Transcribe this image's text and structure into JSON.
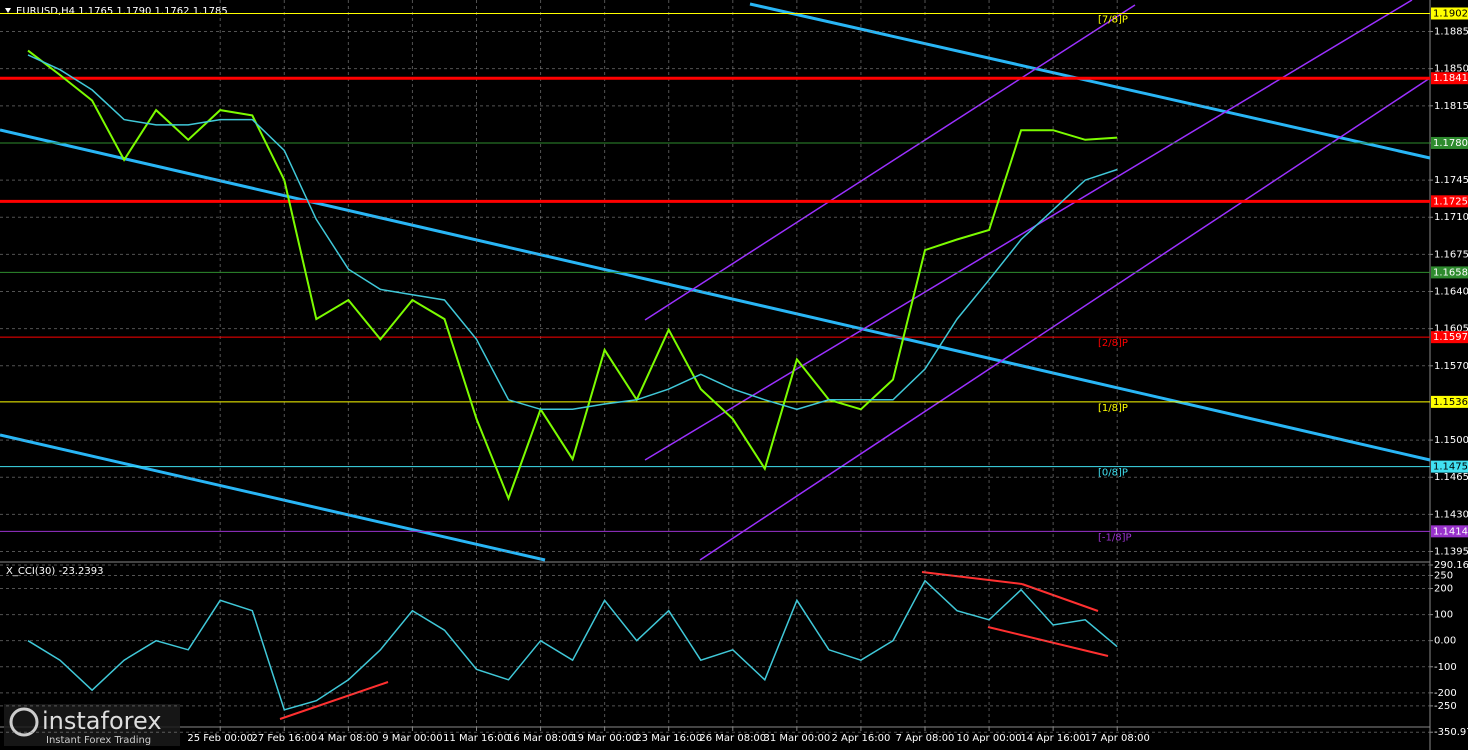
{
  "chart_data": [
    {
      "type": "line",
      "title": "EURUSD,H4  1.1765 1.1790 1.1762 1.1785",
      "categories": [
        null,
        null,
        null,
        null,
        null,
        null,
        "25 Feb 00:00",
        null,
        "27 Feb 16:00",
        null,
        "4 Mar 08:00",
        null,
        "9 Mar 00:00",
        null,
        "11 Mar 16:00",
        null,
        "16 Mar 08:00",
        null,
        "19 Mar 00:00",
        null,
        "23 Mar 16:00",
        null,
        "26 Mar 08:00",
        null,
        "31 Mar 00:00",
        null,
        "2 Apr 16:00",
        null,
        "7 Apr 08:00",
        null,
        "10 Apr 00:00",
        null,
        "14 Apr 16:00",
        null,
        "17 Apr 08:00"
      ],
      "series": [
        {
          "color": "#7cfc00",
          "values": [
            1.1867,
            1.1844,
            1.182,
            1.1764,
            1.1811,
            1.1783,
            1.1811,
            1.1806,
            1.1745,
            1.1614,
            1.1632,
            1.1595,
            1.1632,
            1.1614,
            1.152,
            1.1445,
            1.1529,
            1.1482,
            1.1585,
            1.1538,
            1.1604,
            1.1548,
            1.152,
            1.1473,
            1.1576,
            1.1538,
            1.1529,
            1.1557,
            1.1679,
            1.1689,
            1.1698,
            1.1792,
            1.1792,
            1.1783,
            1.1785
          ]
        },
        {
          "color": "#40c8d8",
          "values": [
            1.1863,
            1.1849,
            1.183,
            1.1802,
            1.1797,
            1.1797,
            1.1802,
            1.1802,
            1.1773,
            1.1708,
            1.1661,
            1.1642,
            1.1637,
            1.1632,
            1.1595,
            1.1538,
            1.1529,
            1.1529,
            1.1534,
            1.1538,
            1.1548,
            1.1562,
            1.1548,
            1.1538,
            1.1529,
            1.1538,
            1.1538,
            1.1538,
            1.1567,
            1.1614,
            1.1651,
            1.1689,
            1.1717,
            1.1745,
            1.1755
          ]
        }
      ],
      "ylim": [
        1.1387,
        1.191
      ],
      "yticks": [
        1.1885,
        {
          "value": 1.185,
          "label": "1.1850"
        },
        1.1815,
        {
          "value": 1.178,
          "label": "1.1780"
        },
        1.1745,
        {
          "value": 1.171,
          "label": "1.1710"
        },
        1.1675,
        {
          "value": 1.164,
          "label": "1.1640"
        },
        1.1605,
        {
          "value": 1.157,
          "label": "1.1570"
        },
        {
          "value": 1.15,
          "label": "1.1500"
        },
        1.1465,
        {
          "value": 1.143,
          "label": "1.1430"
        },
        1.1395
      ],
      "grid": true,
      "levels": [
        {
          "value": 1.1902,
          "color": "#ffff00",
          "tag": "[7/8]P"
        },
        {
          "value": 1.1841,
          "color": "#ff0000",
          "thick": true
        },
        {
          "value": {
            "value": 1.178,
            "label": "1.1780"
          },
          "color": "#2e8b2e"
        },
        {
          "value": 1.1725,
          "color": "#ff0000",
          "thick": true
        },
        {
          "value": 1.1658,
          "color": "#2e8b2e"
        },
        {
          "value": 1.1597,
          "color": "#ff0000",
          "tag": "[2/8]P"
        },
        {
          "value": 1.1536,
          "color": "#ffff00",
          "tag": "[1/8]P"
        },
        {
          "value": 1.1475,
          "color": "#40e0f0",
          "tag": "[0/8]P"
        },
        {
          "value": 1.1414,
          "color": "#9932cc",
          "tag": "[-1/8]P"
        }
      ]
    },
    {
      "type": "line",
      "title": "X_CCI(30) -23.2393",
      "series": [
        {
          "color": "#40c8d8",
          "values": [
            0,
            -75,
            -190,
            -75,
            0,
            -35,
            155,
            115,
            -265,
            -230,
            -150,
            -35,
            115,
            40,
            -110,
            -150,
            0,
            -75,
            155,
            0,
            115,
            -75,
            -35,
            -150,
            155,
            -35,
            -75,
            0,
            230,
            115,
            80,
            195,
            60,
            80,
            -23.2393
          ]
        }
      ],
      "ylim": [
        -400,
        290.1656
      ],
      "yticks": [
        290.1656,
        250,
        200,
        100,
        {
          "value": 0,
          "label": "0.00"
        },
        -100,
        -200,
        -250,
        -350.973
      ],
      "grid": true
    }
  ],
  "watermark": {
    "brand": "instaforex",
    "slogan": "Instant Forex Trading"
  }
}
